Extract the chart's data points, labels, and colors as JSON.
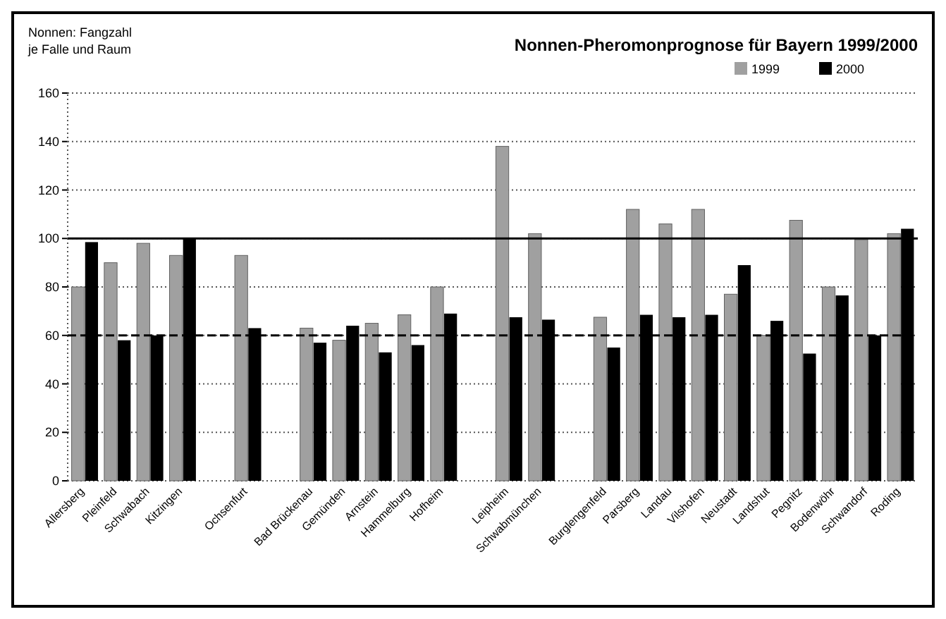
{
  "chart_data": {
    "type": "bar",
    "title": "Nonnen-Pheromonprognose für Bayern 1999/2000",
    "annotations": [
      "Nonnen: Fangzahl",
      "je Falle und Raum"
    ],
    "categories": [
      "Allersberg",
      "Pleinfeld",
      "Schwabach",
      "Kitzingen",
      null,
      "Ochsenfurt",
      null,
      "Bad Brückenau",
      "Gemünden",
      "Arnstein",
      "Hammelburg",
      "Hofheim",
      null,
      "Leipheim",
      "Schwabmünchen",
      null,
      "Burglengenfeld",
      "Parsberg",
      "Landau",
      "Vilshofen",
      "Neustadt",
      "Landshut",
      "Pegnitz",
      "Bodenwöhr",
      "Schwandorf",
      "Roding"
    ],
    "series": [
      {
        "name": "1999",
        "color": "#a0a0a0",
        "values": [
          80,
          90,
          98,
          93,
          null,
          93,
          null,
          63,
          58,
          65,
          68.5,
          80,
          null,
          138,
          102,
          null,
          67.5,
          112,
          106,
          112,
          77,
          60,
          107.5,
          80,
          99.5,
          102
        ]
      },
      {
        "name": "2000",
        "color": "#000000",
        "values": [
          98.5,
          58,
          60,
          100,
          null,
          63,
          null,
          57,
          64,
          53,
          56,
          69,
          null,
          67.5,
          66.5,
          null,
          55,
          68.5,
          67.5,
          68.5,
          89,
          66,
          52.5,
          76.5,
          60,
          104
        ]
      }
    ],
    "ylim": [
      0,
      160
    ],
    "yticks": [
      0,
      20,
      40,
      60,
      80,
      100,
      120,
      140,
      160
    ],
    "grid": "y",
    "legend": "top right",
    "ref_lines": [
      {
        "axis": "y",
        "value": 100,
        "line_style": "solid",
        "color": "#000000"
      },
      {
        "axis": "y",
        "value": 60,
        "line_style": "dashed",
        "color": "#000000"
      }
    ]
  }
}
